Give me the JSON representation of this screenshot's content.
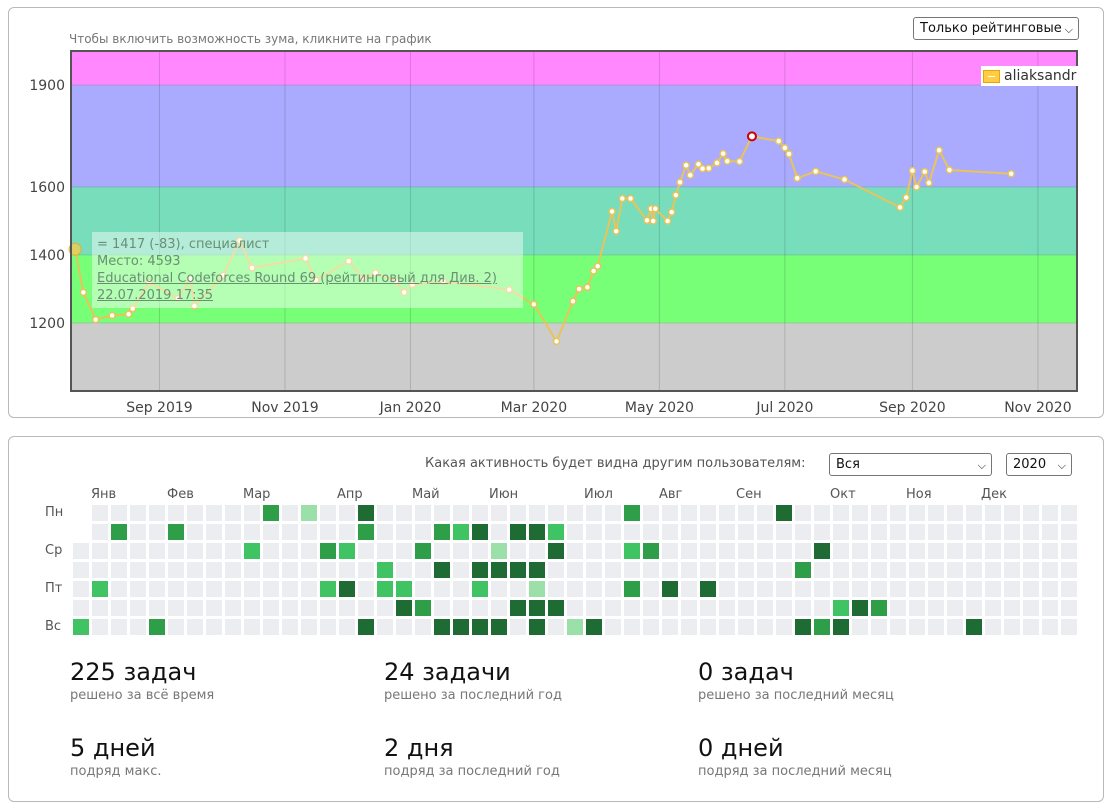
{
  "rating": {
    "hint": "Чтобы включить возможность зума, кликните на график",
    "filter_select": "Только рейтинговые",
    "legend_name": "aliaksandr",
    "tooltip": {
      "line1": "= 1417 (-83), специалист",
      "line2": "Место: 4593",
      "contest": "Educational Codeforces Round 69 (рейтинговый для Див. 2)",
      "date": "22.07.2019 17:35"
    }
  },
  "chart_data": {
    "type": "line",
    "title": "",
    "xlabel": "",
    "ylabel": "",
    "x_tick_labels": [
      "Sep 2019",
      "Nov 2019",
      "Jan 2020",
      "Mar 2020",
      "May 2020",
      "Jul 2020",
      "Sep 2020",
      "Nov 2020"
    ],
    "y_tick_labels": [
      "1200",
      "1400",
      "1600",
      "1900"
    ],
    "ylim": [
      1000,
      2000
    ],
    "bands": [
      {
        "from": 1900,
        "to": 2100,
        "color": "#ff88ff"
      },
      {
        "from": 1600,
        "to": 1900,
        "color": "#aaaaff"
      },
      {
        "from": 1400,
        "to": 1600,
        "color": "#77ddbb"
      },
      {
        "from": 1200,
        "to": 1400,
        "color": "#77ff77"
      },
      {
        "from": 0,
        "to": 1200,
        "color": "#cccccc"
      }
    ],
    "line_color": "#e8c45a",
    "highlight_color": "#cc0000",
    "grid": true,
    "legend_position": "top-right",
    "series": [
      {
        "name": "aliaksandr",
        "points": [
          [
            "2019-07-22",
            1417
          ],
          [
            "2019-07-26",
            1290
          ],
          [
            "2019-08-01",
            1210
          ],
          [
            "2019-08-09",
            1222
          ],
          [
            "2019-08-17",
            1226
          ],
          [
            "2019-08-19",
            1242
          ],
          [
            "2019-08-27",
            1320
          ],
          [
            "2019-09-10",
            1272
          ],
          [
            "2019-09-16",
            1330
          ],
          [
            "2019-09-18",
            1250
          ],
          [
            "2019-10-02",
            1340
          ],
          [
            "2019-10-10",
            1442
          ],
          [
            "2019-10-16",
            1362
          ],
          [
            "2019-11-11",
            1390
          ],
          [
            "2019-11-16",
            1326
          ],
          [
            "2019-12-02",
            1382
          ],
          [
            "2019-12-09",
            1332
          ],
          [
            "2019-12-15",
            1347
          ],
          [
            "2019-12-25",
            1323
          ],
          [
            "2019-12-29",
            1290
          ],
          [
            "2020-01-02",
            1313
          ],
          [
            "2020-01-17",
            1322
          ],
          [
            "2020-02-18",
            1298
          ],
          [
            "2020-03-01",
            1255
          ],
          [
            "2020-03-12",
            1146
          ],
          [
            "2020-03-20",
            1264
          ],
          [
            "2020-03-23",
            1300
          ],
          [
            "2020-03-27",
            1305
          ],
          [
            "2020-03-30",
            1353
          ],
          [
            "2020-04-01",
            1367
          ],
          [
            "2020-04-08",
            1528
          ],
          [
            "2020-04-10",
            1470
          ],
          [
            "2020-04-13",
            1566
          ],
          [
            "2020-04-17",
            1566
          ],
          [
            "2020-04-25",
            1502
          ],
          [
            "2020-04-27",
            1536
          ],
          [
            "2020-04-28",
            1500
          ],
          [
            "2020-04-29",
            1536
          ],
          [
            "2020-05-05",
            1500
          ],
          [
            "2020-05-07",
            1526
          ],
          [
            "2020-05-09",
            1576
          ],
          [
            "2020-05-11",
            1614
          ],
          [
            "2020-05-14",
            1664
          ],
          [
            "2020-05-16",
            1635
          ],
          [
            "2020-05-20",
            1667
          ],
          [
            "2020-05-22",
            1654
          ],
          [
            "2020-05-25",
            1655
          ],
          [
            "2020-05-29",
            1671
          ],
          [
            "2020-06-01",
            1698
          ],
          [
            "2020-06-03",
            1676
          ],
          [
            "2020-06-09",
            1675
          ],
          [
            "2020-06-15",
            1749
          ],
          [
            "2020-06-28",
            1735
          ],
          [
            "2020-07-01",
            1715
          ],
          [
            "2020-07-03",
            1697
          ],
          [
            "2020-07-07",
            1626
          ],
          [
            "2020-07-16",
            1646
          ],
          [
            "2020-07-30",
            1622
          ],
          [
            "2020-08-26",
            1540
          ],
          [
            "2020-08-29",
            1569
          ],
          [
            "2020-09-01",
            1648
          ],
          [
            "2020-09-03",
            1600
          ],
          [
            "2020-09-07",
            1645
          ],
          [
            "2020-09-09",
            1612
          ],
          [
            "2020-09-14",
            1708
          ],
          [
            "2020-09-19",
            1650
          ],
          [
            "2020-10-19",
            1639
          ]
        ],
        "highlight_index": 51
      }
    ]
  },
  "activity": {
    "visibility_label": "Какая активность будет видна другим пользователям:",
    "visibility_select": "Вся",
    "year_select": "2020",
    "months": [
      "Янв",
      "Фев",
      "Мар",
      "Апр",
      "Май",
      "Июн",
      "Июл",
      "Авг",
      "Сен",
      "Окт",
      "Ноя",
      "Дек"
    ],
    "days": [
      "Пн",
      "Ср",
      "Пт",
      "Вс"
    ],
    "first_column_row": 2,
    "weeks": 53,
    "cells": [
      [
        0,
        6,
        2
      ],
      [
        1,
        4,
        2
      ],
      [
        2,
        1,
        3
      ],
      [
        4,
        6,
        3
      ],
      [
        5,
        1,
        3
      ],
      [
        9,
        2,
        2
      ],
      [
        10,
        0,
        3
      ],
      [
        12,
        0,
        1
      ],
      [
        13,
        2,
        3
      ],
      [
        13,
        4,
        2
      ],
      [
        14,
        2,
        2
      ],
      [
        14,
        4,
        4
      ],
      [
        15,
        0,
        4
      ],
      [
        15,
        1,
        3
      ],
      [
        15,
        6,
        4
      ],
      [
        16,
        3,
        2
      ],
      [
        16,
        4,
        2
      ],
      [
        17,
        4,
        2
      ],
      [
        17,
        5,
        4
      ],
      [
        18,
        2,
        3
      ],
      [
        18,
        5,
        3
      ],
      [
        19,
        1,
        3
      ],
      [
        19,
        3,
        4
      ],
      [
        19,
        6,
        4
      ],
      [
        20,
        1,
        2
      ],
      [
        20,
        6,
        4
      ],
      [
        21,
        1,
        4
      ],
      [
        21,
        3,
        4
      ],
      [
        21,
        4,
        2
      ],
      [
        21,
        6,
        4
      ],
      [
        22,
        2,
        1
      ],
      [
        22,
        3,
        4
      ],
      [
        22,
        6,
        4
      ],
      [
        23,
        1,
        4
      ],
      [
        23,
        3,
        4
      ],
      [
        23,
        5,
        4
      ],
      [
        24,
        1,
        4
      ],
      [
        24,
        3,
        4
      ],
      [
        24,
        4,
        1
      ],
      [
        24,
        5,
        4
      ],
      [
        24,
        6,
        4
      ],
      [
        25,
        1,
        2
      ],
      [
        25,
        2,
        4
      ],
      [
        25,
        5,
        4
      ],
      [
        26,
        6,
        1
      ],
      [
        27,
        6,
        4
      ],
      [
        29,
        0,
        3
      ],
      [
        29,
        2,
        2
      ],
      [
        29,
        4,
        3
      ],
      [
        30,
        2,
        3
      ],
      [
        31,
        4,
        4
      ],
      [
        33,
        4,
        4
      ],
      [
        37,
        0,
        4
      ],
      [
        38,
        3,
        3
      ],
      [
        39,
        2,
        4
      ],
      [
        38,
        6,
        4
      ],
      [
        39,
        6,
        3
      ],
      [
        40,
        5,
        2
      ],
      [
        40,
        6,
        4
      ],
      [
        41,
        5,
        4
      ],
      [
        42,
        5,
        3
      ],
      [
        47,
        6,
        4
      ]
    ]
  },
  "stats": [
    {
      "big": "225 задач",
      "small": "решено за всё время"
    },
    {
      "big": "24 задачи",
      "small": "решено за последний год"
    },
    {
      "big": "0 задач",
      "small": "решено за последний месяц"
    },
    {
      "big": "5 дней",
      "small": "подряд макс."
    },
    {
      "big": "2 дня",
      "small": "подряд за последний год"
    },
    {
      "big": "0 дней",
      "small": "подряд за последний месяц"
    }
  ]
}
